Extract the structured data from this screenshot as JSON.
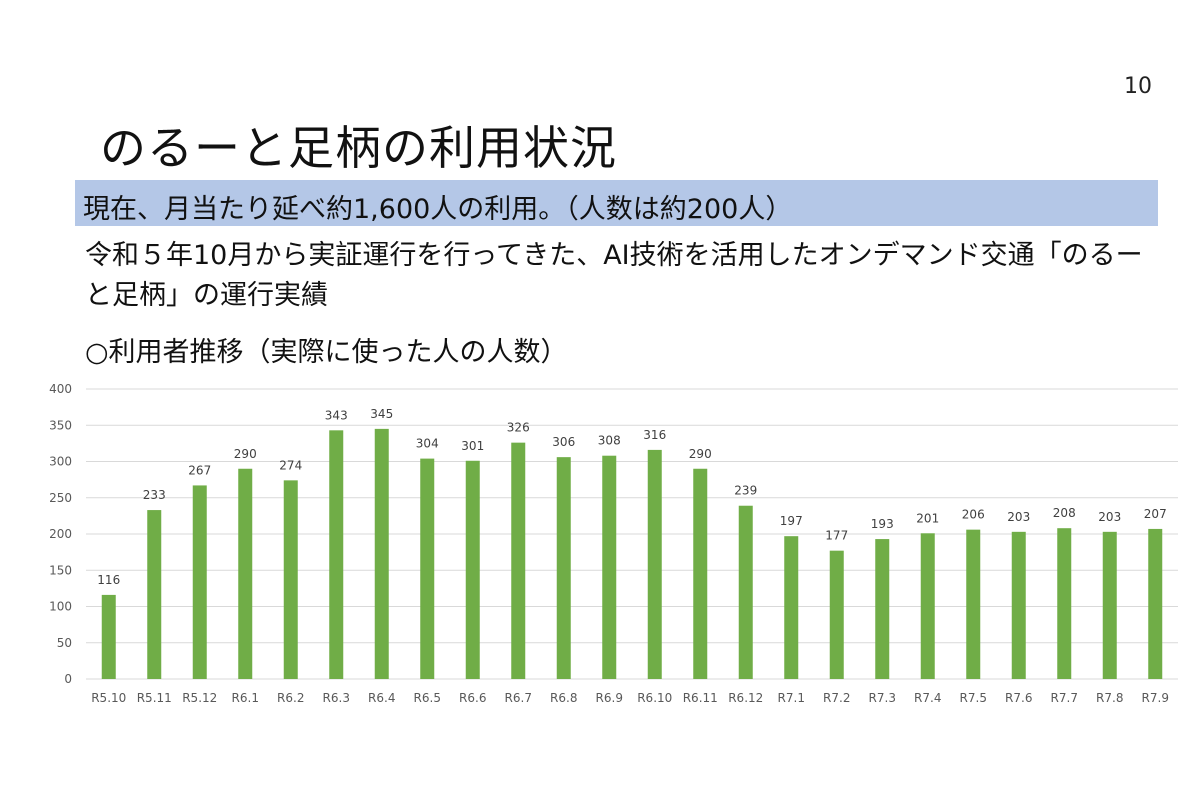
{
  "page_number": "10",
  "title": "のるーと足柄の利用状況",
  "highlight": "現在、月当たり延べ約1,600人の利用。（人数は約200人）",
  "description": "令和５年10月から実証運行を行ってきた、AI技術を活用したオンデマンド交通「のるーと足柄」の運行実績",
  "subheading": "○利用者推移（実際に使った人の人数）",
  "colors": {
    "bar": "#70ad47",
    "highlight_band": "#b4c7e7",
    "grid": "#d9d9d9"
  },
  "chart_data": {
    "type": "bar",
    "categories": [
      "R5.10",
      "R5.11",
      "R5.12",
      "R6.1",
      "R6.2",
      "R6.3",
      "R6.4",
      "R6.5",
      "R6.6",
      "R6.7",
      "R6.8",
      "R6.9",
      "R6.10",
      "R6.11",
      "R6.12",
      "R7.1",
      "R7.2",
      "R7.3",
      "R7.4",
      "R7.5",
      "R7.6",
      "R7.7",
      "R7.8",
      "R7.9"
    ],
    "values": [
      116,
      233,
      267,
      290,
      274,
      343,
      345,
      304,
      301,
      326,
      306,
      308,
      316,
      290,
      239,
      197,
      177,
      193,
      201,
      206,
      203,
      208,
      203,
      207
    ],
    "ylim": [
      0,
      400
    ],
    "yticks": [
      0,
      50,
      100,
      150,
      200,
      250,
      300,
      350,
      400
    ],
    "grid": true,
    "data_labels": true
  }
}
